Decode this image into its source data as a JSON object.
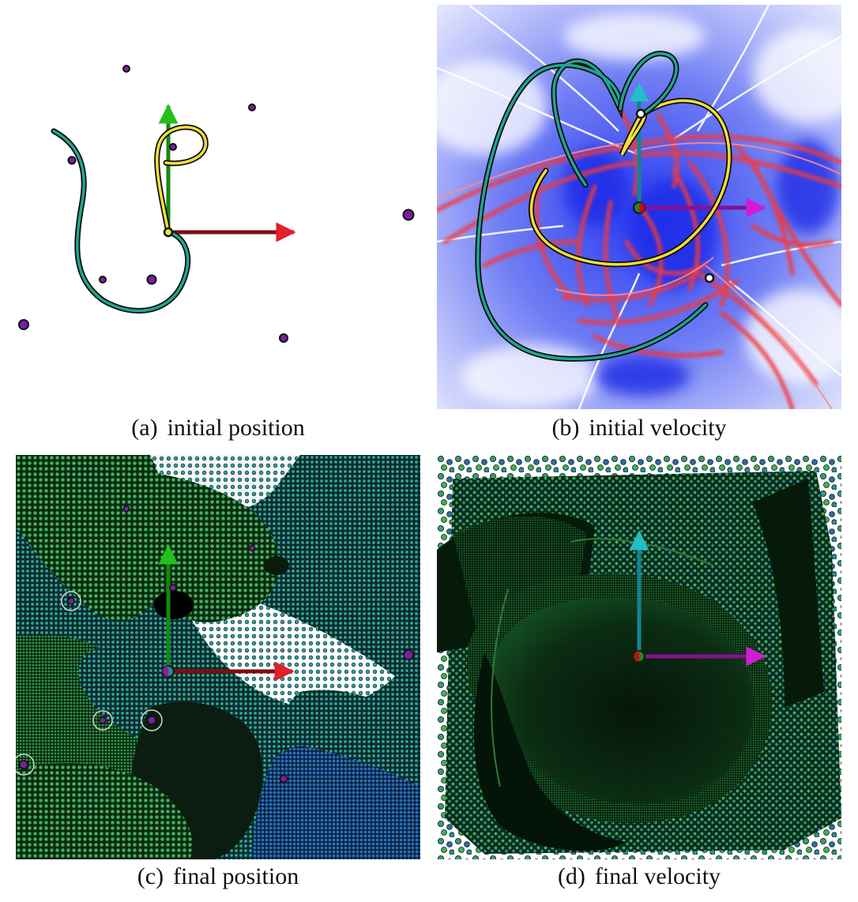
{
  "panels": [
    {
      "id": "a",
      "label": "(a)",
      "title": "initial position"
    },
    {
      "id": "b",
      "label": "(b)",
      "title": "initial velocity"
    },
    {
      "id": "c",
      "label": "(c)",
      "title": "final position"
    },
    {
      "id": "d",
      "label": "(d)",
      "title": "final velocity"
    }
  ],
  "colors": {
    "point_mass": "#7a1fa2",
    "orbit_teal": "#1fa58f",
    "orbit_yellow": "#f2de3a",
    "axis_x": "#c0161c",
    "axis_y": "#23c11a",
    "axis_x_velocity": "#d21bd8",
    "axis_y_velocity": "#22bfc8",
    "field_blue": "#3b4cf0",
    "field_red": "#e8333a",
    "particle_green": "#2e9a4a",
    "particle_blue": "#2670b8"
  }
}
